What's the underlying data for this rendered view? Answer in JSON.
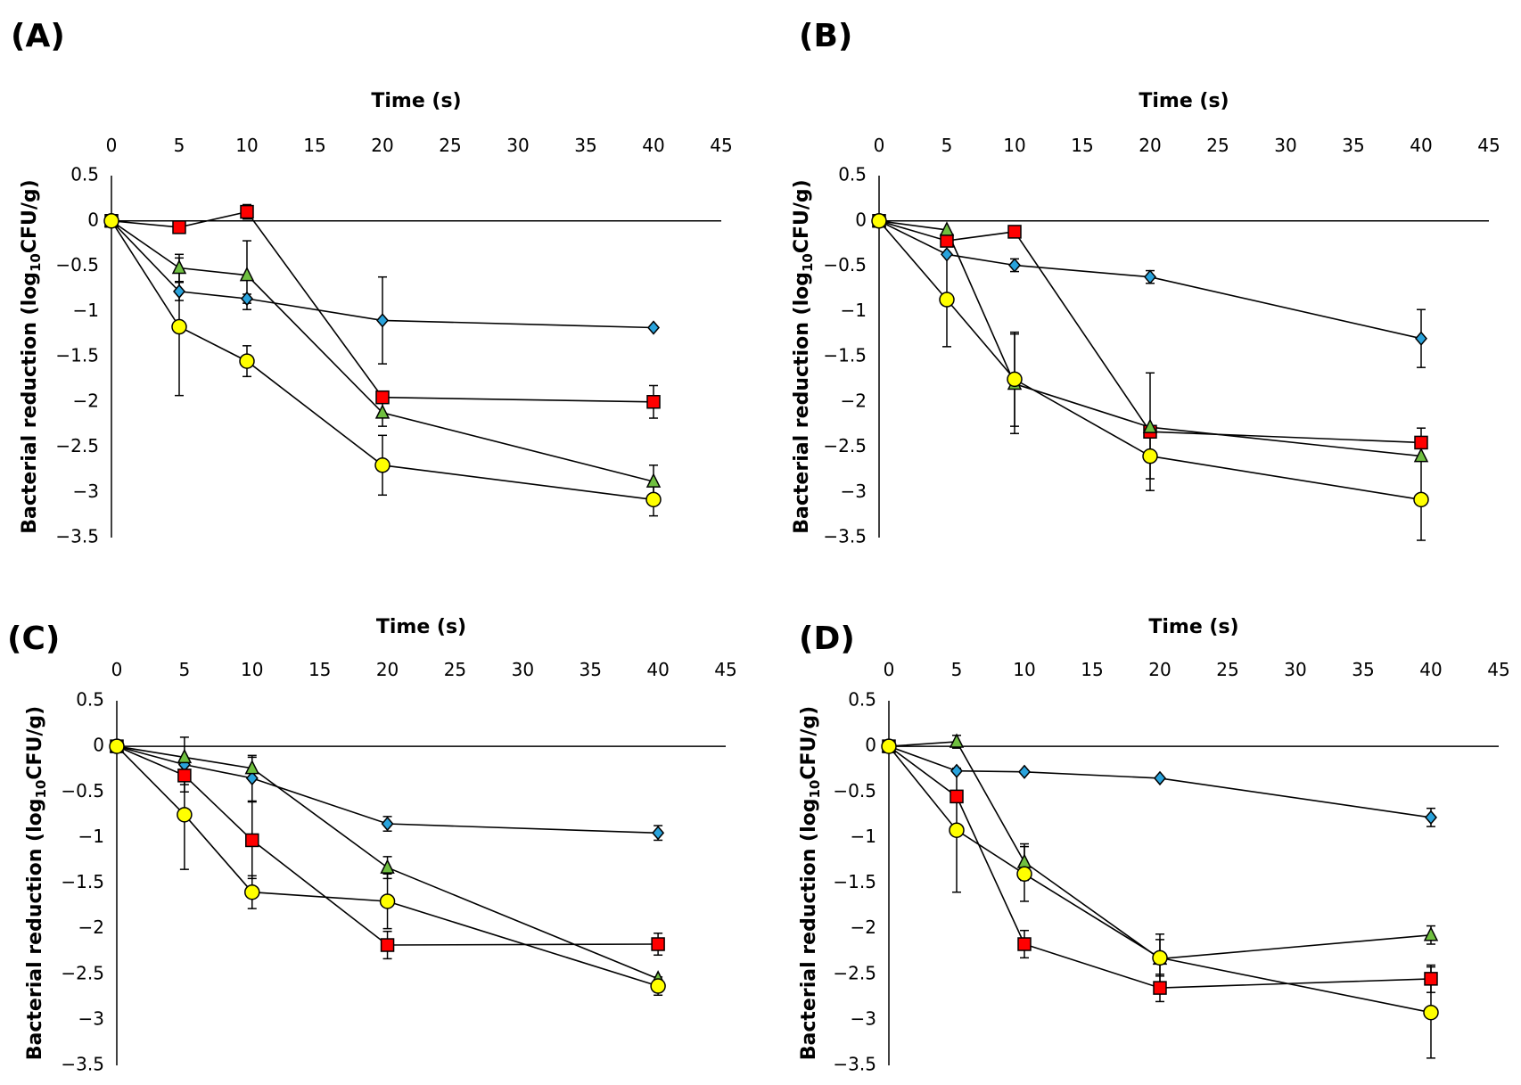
{
  "chart_data": [
    {
      "type": "line",
      "panel": "(A)",
      "xlabel": "Time (s)",
      "ylabel": "Bacterial reduction (log10 CFU/g)",
      "ylabel_main": "Bacterial reduction (log",
      "ylabel_sub": "10",
      "ylabel_end": "CFU/g)",
      "xlim": [
        0,
        45
      ],
      "ylim": [
        -3.5,
        0.5
      ],
      "x_ticks": [
        "0",
        "5",
        "10",
        "15",
        "20",
        "25",
        "30",
        "35",
        "40",
        "45"
      ],
      "y_ticks": [
        "0.5",
        "0",
        "-0.5",
        "-1",
        "-1.5",
        "-2",
        "-2.5",
        "-3",
        "-3.5"
      ],
      "x_axis_position": "top",
      "series": [
        {
          "marker": "diamond",
          "color": "#29a3dc",
          "x": [
            0,
            5,
            10,
            20,
            40
          ],
          "y": [
            0,
            -0.78,
            -0.86,
            -1.1,
            -1.18
          ],
          "err": [
            0,
            0.1,
            0.05,
            0.48,
            0
          ]
        },
        {
          "marker": "square",
          "color": "#ff0000",
          "x": [
            0,
            5,
            10,
            20,
            40
          ],
          "y": [
            0,
            -0.07,
            0.1,
            -1.95,
            -2.0
          ],
          "err": [
            0,
            0,
            0.08,
            0,
            0.18
          ]
        },
        {
          "marker": "triangle",
          "color": "#70c040",
          "x": [
            0,
            5,
            10,
            20,
            40
          ],
          "y": [
            0,
            -0.52,
            -0.6,
            -2.12,
            -2.88
          ],
          "err": [
            0,
            0.15,
            0.38,
            0.15,
            0.18
          ]
        },
        {
          "marker": "circle",
          "color": "#ffff00",
          "x": [
            0,
            5,
            10,
            20,
            40
          ],
          "y": [
            0,
            -1.17,
            -1.55,
            -2.7,
            -3.08
          ],
          "err": [
            0,
            0.76,
            0.17,
            0.33,
            0.18
          ]
        }
      ]
    },
    {
      "type": "line",
      "panel": "(B)",
      "xlabel": "Time (s)",
      "ylabel": "Bacterial reduction (log10 CFU/g)",
      "ylabel_main": "Bacterial reduction (log",
      "ylabel_sub": "10",
      "ylabel_end": "CFU/g)",
      "xlim": [
        0,
        45
      ],
      "ylim": [
        -3.5,
        0.5
      ],
      "x_ticks": [
        "0",
        "5",
        "10",
        "15",
        "20",
        "25",
        "30",
        "35",
        "40",
        "45"
      ],
      "y_ticks": [
        "0.5",
        "0",
        "-0.5",
        "-1",
        "-1.5",
        "-2",
        "-2.5",
        "-3",
        "-3.5"
      ],
      "x_axis_position": "top",
      "series": [
        {
          "marker": "diamond",
          "color": "#29a3dc",
          "x": [
            0,
            5,
            10,
            20,
            40
          ],
          "y": [
            0,
            -0.37,
            -0.49,
            -0.62,
            -1.3
          ],
          "err": [
            0,
            0,
            0.07,
            0.07,
            0.32
          ]
        },
        {
          "marker": "square",
          "color": "#ff0000",
          "x": [
            0,
            5,
            10,
            20,
            40
          ],
          "y": [
            0,
            -0.22,
            -0.12,
            -2.33,
            -2.45
          ],
          "err": [
            0,
            0,
            0,
            0.65,
            0.16
          ]
        },
        {
          "marker": "triangle",
          "color": "#70c040",
          "x": [
            0,
            5,
            10,
            20,
            40
          ],
          "y": [
            0,
            -0.1,
            -1.8,
            -2.28,
            -2.6
          ],
          "err": [
            0,
            0,
            0.55,
            0,
            0
          ]
        },
        {
          "marker": "circle",
          "color": "#ffff00",
          "x": [
            0,
            5,
            10,
            20,
            40
          ],
          "y": [
            0,
            -0.87,
            -1.75,
            -2.6,
            -3.08
          ],
          "err": [
            0,
            0.52,
            0.52,
            0.25,
            0.45
          ]
        }
      ]
    },
    {
      "type": "line",
      "panel": "(C)",
      "xlabel": "Time (s)",
      "ylabel": "Bacterial reduction (log10 CFU/g)",
      "ylabel_main": "Bacterial reduction (log",
      "ylabel_sub": "10",
      "ylabel_end": "CFU/g)",
      "xlim": [
        0,
        45
      ],
      "ylim": [
        -3.5,
        0.5
      ],
      "x_ticks": [
        "0",
        "5",
        "10",
        "15",
        "20",
        "25",
        "30",
        "35",
        "40",
        "45"
      ],
      "y_ticks": [
        "0.5",
        "0",
        "-0.5",
        "-1",
        "-1.5",
        "-2",
        "-2.5",
        "-3",
        "-3.5"
      ],
      "x_axis_position": "top",
      "series": [
        {
          "marker": "diamond",
          "color": "#29a3dc",
          "x": [
            0,
            5,
            10,
            20,
            40
          ],
          "y": [
            0,
            -0.2,
            -0.35,
            -0.85,
            -0.95
          ],
          "err": [
            0,
            0.3,
            0.25,
            0.08,
            0.08
          ]
        },
        {
          "marker": "square",
          "color": "#ff0000",
          "x": [
            0,
            5,
            10,
            20,
            40
          ],
          "y": [
            0,
            -0.32,
            -1.03,
            -2.18,
            -2.17
          ],
          "err": [
            0,
            0.1,
            0.42,
            0.15,
            0.12
          ]
        },
        {
          "marker": "triangle",
          "color": "#70c040",
          "x": [
            0,
            5,
            10,
            20,
            40
          ],
          "y": [
            0,
            -0.12,
            -0.24,
            -1.33,
            -2.55
          ],
          "err": [
            0,
            0,
            0.12,
            0.12,
            0
          ]
        },
        {
          "marker": "circle",
          "color": "#ffff00",
          "x": [
            0,
            5,
            10,
            20,
            40
          ],
          "y": [
            0,
            -0.75,
            -1.6,
            -1.7,
            -2.63
          ],
          "err": [
            0,
            0.6,
            0.18,
            0.3,
            0.1
          ]
        }
      ]
    },
    {
      "type": "line",
      "panel": "(D)",
      "xlabel": "Time (s)",
      "ylabel": "Bacterial reduction (log10 CFU/g)",
      "ylabel_main": "Bacterial reduction (log",
      "ylabel_sub": "10",
      "ylabel_end": "CFU/g)",
      "xlim": [
        0,
        45
      ],
      "ylim": [
        -3.5,
        0.5
      ],
      "x_ticks": [
        "0",
        "5",
        "10",
        "15",
        "20",
        "25",
        "30",
        "35",
        "40",
        "45"
      ],
      "y_ticks": [
        "0.5",
        "0",
        "-0.5",
        "-1",
        "-1.5",
        "-2",
        "-2.5",
        "-3",
        "-3.5"
      ],
      "x_axis_position": "top",
      "series": [
        {
          "marker": "diamond",
          "color": "#29a3dc",
          "x": [
            0,
            5,
            10,
            20,
            40
          ],
          "y": [
            0,
            -0.27,
            -0.28,
            -0.35,
            -0.78
          ],
          "err": [
            0,
            0,
            0,
            0,
            0.1
          ]
        },
        {
          "marker": "square",
          "color": "#ff0000",
          "x": [
            0,
            5,
            10,
            20,
            40
          ],
          "y": [
            0,
            -0.55,
            -2.17,
            -2.65,
            -2.55
          ],
          "err": [
            0,
            0,
            0.15,
            0.15,
            0.15
          ]
        },
        {
          "marker": "triangle",
          "color": "#70c040",
          "x": [
            0,
            5,
            10,
            20,
            40
          ],
          "y": [
            0,
            0.05,
            -1.27,
            -2.33,
            -2.07
          ],
          "err": [
            0,
            0.07,
            0.2,
            0.27,
            0.1
          ]
        },
        {
          "marker": "circle",
          "color": "#ffff00",
          "x": [
            0,
            5,
            10,
            20,
            40
          ],
          "y": [
            0,
            -0.92,
            -1.4,
            -2.32,
            -2.92
          ],
          "err": [
            0,
            0.68,
            0.3,
            0.2,
            0.5
          ]
        }
      ]
    }
  ]
}
